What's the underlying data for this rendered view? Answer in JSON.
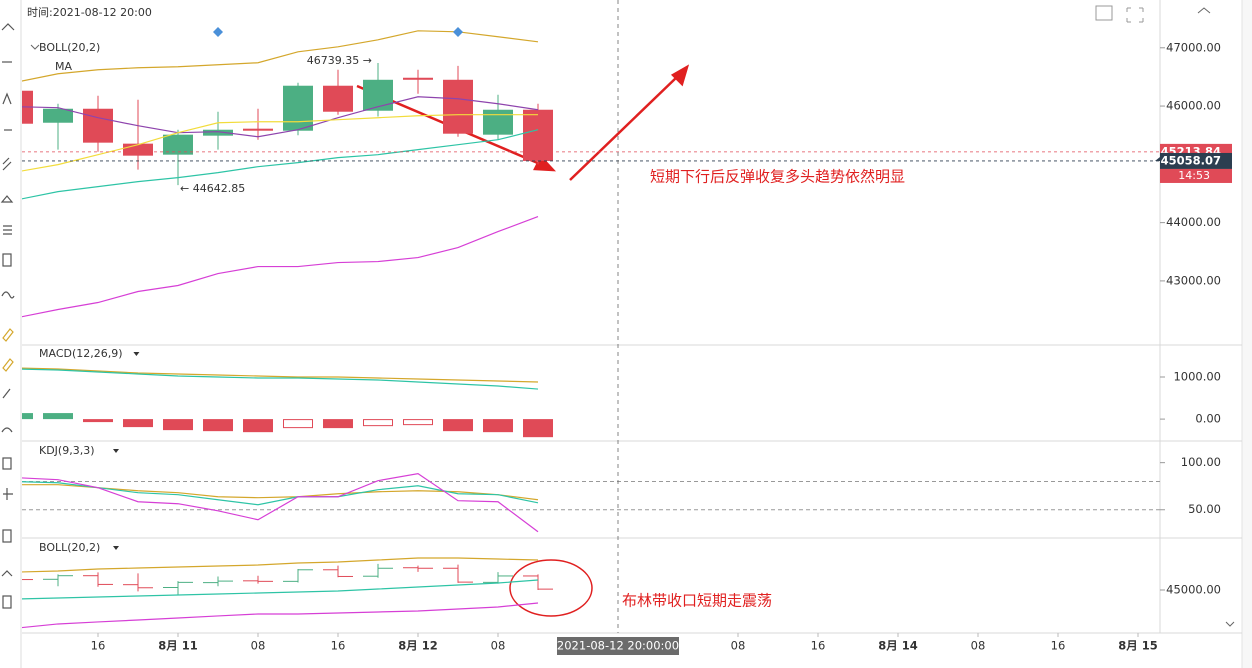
{
  "header": {
    "time_label": "时间:2021-08-12 20:00"
  },
  "chart_data": [
    {
      "type": "candlestick",
      "title": "BOLL(20,2)",
      "subtitle": "MA",
      "xlim": [
        8.4,
        122.2
      ],
      "ylim": [
        41900,
        47820
      ],
      "yticks": [
        {
          "value": 47000,
          "label": "47000.00"
        },
        {
          "value": 46000,
          "label": "46000.00"
        },
        {
          "value": 44000,
          "label": "44000.00"
        },
        {
          "value": 43000,
          "label": "43000.00"
        }
      ],
      "x": [
        8,
        12,
        16,
        20,
        24,
        28,
        32,
        36,
        40,
        44,
        48,
        52,
        56,
        60
      ],
      "open": [
        46263,
        45714,
        45954,
        45355,
        45166,
        45492,
        45612,
        45577,
        46349,
        45920,
        46486,
        46451,
        45509,
        45937
      ],
      "high": [
        46300,
        46040,
        46177,
        46109,
        45594,
        45903,
        45954,
        46400,
        46623,
        46739.35,
        46623,
        46690,
        46194,
        46040
      ],
      "low": [
        45650,
        45252,
        45217,
        44909,
        44642.85,
        45252,
        45423,
        45500,
        45852,
        45820,
        46212,
        45474,
        45423,
        45000
      ],
      "close": [
        45697,
        45954,
        45372,
        45149,
        45509,
        45594,
        45577,
        46349,
        45903,
        46451,
        46451,
        45526,
        45937,
        45058.07
      ],
      "up_color": "#4caf83",
      "down_color": "#e04a57",
      "series": [
        {
          "color": "#d4a72c",
          "values": [
            46417,
            46554,
            46623,
            46657,
            46674,
            46709,
            46743,
            46931,
            47017,
            47137,
            47291,
            47274,
            47189,
            47103
          ]
        },
        {
          "color": "#2ec4a6",
          "values": [
            44395,
            44532,
            44618,
            44703,
            44772,
            44858,
            44960,
            45029,
            45115,
            45166,
            45252,
            45337,
            45423,
            45594
          ]
        },
        {
          "color": "#d63fd6",
          "values": [
            42372,
            42509,
            42629,
            42818,
            42921,
            43126,
            43246,
            43246,
            43315,
            43332,
            43400,
            43572,
            43846,
            44103
          ]
        },
        {
          "color": "#8e44ad",
          "values": [
            45989,
            45972,
            45800,
            45663,
            45543,
            45560,
            45474,
            45594,
            45800,
            45989,
            46160,
            46126,
            46040,
            45937
          ]
        },
        {
          "color": "#f2dc3c",
          "values": [
            44875,
            44995,
            45166,
            45337,
            45543,
            45714,
            45731,
            45731,
            45766,
            45800,
            45834,
            45852,
            45852,
            45852
          ]
        }
      ],
      "extreme_labels": [
        {
          "x": 44,
          "value": 46739.35,
          "label": "46739.35 →",
          "side": "left"
        },
        {
          "x": 24,
          "value": 44642.85,
          "label": "← 44642.85",
          "side": "right"
        }
      ],
      "price_lines": [
        {
          "value": 45213.84,
          "color": "#e04a57"
        },
        {
          "value": 45058.07,
          "color": "#2c3e50"
        }
      ],
      "countdown": "14:53",
      "markers_x": [
        28,
        52
      ],
      "annotation": "短期下行后反弹收复多头趋势依然明显"
    },
    {
      "type": "macd",
      "title": "MACD(12,26,9)",
      "xlim": [
        8.4,
        122.2
      ],
      "ylim": [
        -520,
        1760
      ],
      "yticks": [
        {
          "value": 1000,
          "label": "1000.00"
        },
        {
          "value": 0,
          "label": "0.00"
        }
      ],
      "x": [
        8,
        12,
        16,
        20,
        24,
        28,
        32,
        36,
        40,
        44,
        48,
        52,
        56,
        60
      ],
      "histogram": [
        143,
        143,
        -71,
        -190,
        -262,
        -286,
        -310,
        -214,
        -214,
        -167,
        -143,
        -286,
        -310,
        -429
      ],
      "hollow": [
        false,
        false,
        false,
        false,
        false,
        false,
        false,
        true,
        false,
        true,
        true,
        false,
        false,
        false
      ],
      "up_color": "#4caf83",
      "down_color": "#e04a57",
      "series": [
        {
          "color": "#d4a72c",
          "values": [
            1214,
            1190,
            1143,
            1095,
            1071,
            1048,
            1024,
            1000,
            1000,
            976,
            952,
            929,
            905,
            881
          ]
        },
        {
          "color": "#2ec4a6",
          "values": [
            1190,
            1167,
            1119,
            1071,
            1024,
            1000,
            976,
            976,
            952,
            929,
            881,
            833,
            786,
            714
          ]
        }
      ]
    },
    {
      "type": "line",
      "title": "KDJ(9,3,3)",
      "xlim": [
        8.4,
        122.2
      ],
      "ylim": [
        20,
        123
      ],
      "yticks": [
        {
          "value": 100,
          "label": "100.00"
        },
        {
          "value": 50,
          "label": "50.00"
        }
      ],
      "levels": [
        80,
        50
      ],
      "x": [
        8,
        12,
        16,
        20,
        24,
        28,
        32,
        36,
        40,
        44,
        48,
        52,
        56,
        60
      ],
      "series": [
        {
          "color": "#d4a72c",
          "values": [
            76.6,
            76.6,
            73.4,
            70.2,
            68.1,
            63.8,
            62.8,
            63.8,
            67.0,
            69.1,
            70.2,
            69.1,
            66.0,
            60.6
          ]
        },
        {
          "color": "#2ec4a6",
          "values": [
            79.8,
            78.7,
            73.4,
            68.1,
            66.0,
            60.6,
            55.3,
            63.8,
            63.8,
            71.3,
            75.5,
            67.0,
            66.0,
            57.4
          ]
        },
        {
          "color": "#d63fd6",
          "values": [
            84.0,
            81.9,
            73.4,
            58.5,
            56.4,
            48.9,
            39.4,
            63.8,
            63.8,
            80.9,
            88.3,
            59.6,
            58.5,
            26.6
          ]
        }
      ]
    },
    {
      "type": "ohlc",
      "title": "BOLL(20,2)",
      "xlim": [
        8.4,
        122.2
      ],
      "ylim": [
        42130,
        48470
      ],
      "yticks": [
        {
          "value": 45000,
          "label": "45000.00"
        }
      ],
      "x": [
        8,
        12,
        16,
        20,
        24,
        28,
        32,
        36,
        40,
        44,
        48,
        52,
        56,
        60
      ],
      "series": [
        {
          "color": "#d4a72c",
          "values": [
            46200,
            46267,
            46400,
            46467,
            46533,
            46600,
            46667,
            46800,
            46867,
            47000,
            47133,
            47133,
            47067,
            47000
          ]
        },
        {
          "color": "#2ec4a6",
          "values": [
            44400,
            44467,
            44533,
            44600,
            44667,
            44733,
            44800,
            44867,
            44933,
            45067,
            45200,
            45333,
            45467,
            45667
          ]
        },
        {
          "color": "#d63fd6",
          "values": [
            42467,
            42733,
            42867,
            43000,
            43133,
            43267,
            43400,
            43400,
            43467,
            43533,
            43600,
            43733,
            43867,
            44133
          ]
        }
      ],
      "xticks": [
        {
          "value": 16,
          "label": "16"
        },
        {
          "value": 24,
          "label": "8月 11"
        },
        {
          "value": 32,
          "label": "08"
        },
        {
          "value": 40,
          "label": "16"
        },
        {
          "value": 48,
          "label": "8月 12"
        },
        {
          "value": 56,
          "label": "08"
        },
        {
          "value": 80,
          "label": "08"
        },
        {
          "value": 88,
          "label": "16"
        },
        {
          "value": 96,
          "label": "8月 14"
        },
        {
          "value": 104,
          "label": "08"
        },
        {
          "value": 112,
          "label": "16"
        },
        {
          "value": 120,
          "label": "8月 15"
        }
      ],
      "crosshair_x": {
        "value": 68,
        "label": "2021-08-12 20:00:00"
      },
      "annotation": "布林带收口短期走震荡"
    }
  ]
}
